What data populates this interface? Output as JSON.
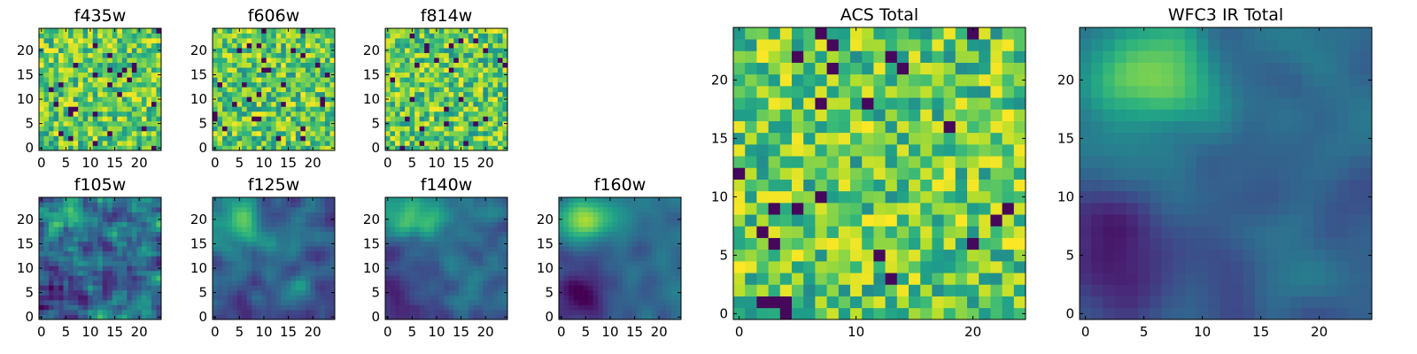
{
  "figure": {
    "colormap": "viridis",
    "grid": false,
    "legend": "none",
    "colormap_stops": [
      "#440154",
      "#3b528b",
      "#21918c",
      "#5ec962",
      "#fde725"
    ]
  },
  "chart_data": [
    {
      "type": "heatmap",
      "title": "f435w",
      "xlabel": "",
      "ylabel": "",
      "xlim": [
        -0.5,
        24.5
      ],
      "ylim": [
        -0.5,
        24.5
      ],
      "xticks": [
        "0",
        "5",
        "10",
        "15",
        "20"
      ],
      "yticks": [
        "0",
        "5",
        "10",
        "15",
        "20"
      ],
      "grid_shape": [
        25,
        25
      ],
      "value_range": [
        0,
        1
      ],
      "pattern": "noise",
      "seed": 11
    },
    {
      "type": "heatmap",
      "title": "f606w",
      "xlabel": "",
      "ylabel": "",
      "xlim": [
        -0.5,
        24.5
      ],
      "ylim": [
        -0.5,
        24.5
      ],
      "xticks": [
        "0",
        "5",
        "10",
        "15",
        "20"
      ],
      "yticks": [
        "0",
        "5",
        "10",
        "15",
        "20"
      ],
      "grid_shape": [
        25,
        25
      ],
      "value_range": [
        0,
        1
      ],
      "pattern": "noise",
      "seed": 23
    },
    {
      "type": "heatmap",
      "title": "f814w",
      "xlabel": "",
      "ylabel": "",
      "xlim": [
        -0.5,
        24.5
      ],
      "ylim": [
        -0.5,
        24.5
      ],
      "xticks": [
        "0",
        "5",
        "10",
        "15",
        "20"
      ],
      "yticks": [
        "0",
        "5",
        "10",
        "15",
        "20"
      ],
      "grid_shape": [
        25,
        25
      ],
      "value_range": [
        0,
        1
      ],
      "pattern": "noise",
      "seed": 37
    },
    {
      "type": "heatmap",
      "title": "f105w",
      "xlabel": "",
      "ylabel": "",
      "xlim": [
        -0.5,
        24.5
      ],
      "ylim": [
        -0.5,
        24.5
      ],
      "xticks": [
        "0",
        "5",
        "10",
        "15",
        "20"
      ],
      "yticks": [
        "0",
        "5",
        "10",
        "15",
        "20"
      ],
      "grid_shape": [
        25,
        25
      ],
      "value_range": [
        0,
        1
      ],
      "pattern": "ir",
      "smooth": 0.35,
      "seed": 41
    },
    {
      "type": "heatmap",
      "title": "f125w",
      "xlabel": "",
      "ylabel": "",
      "xlim": [
        -0.5,
        24.5
      ],
      "ylim": [
        -0.5,
        24.5
      ],
      "xticks": [
        "0",
        "5",
        "10",
        "15",
        "20"
      ],
      "yticks": [
        "0",
        "5",
        "10",
        "15",
        "20"
      ],
      "grid_shape": [
        25,
        25
      ],
      "value_range": [
        0,
        1
      ],
      "pattern": "ir",
      "smooth": 0.55,
      "seed": 53
    },
    {
      "type": "heatmap",
      "title": "f140w",
      "xlabel": "",
      "ylabel": "",
      "xlim": [
        -0.5,
        24.5
      ],
      "ylim": [
        -0.5,
        24.5
      ],
      "xticks": [
        "0",
        "5",
        "10",
        "15",
        "20"
      ],
      "yticks": [
        "0",
        "5",
        "10",
        "15",
        "20"
      ],
      "grid_shape": [
        25,
        25
      ],
      "value_range": [
        0,
        1
      ],
      "pattern": "ir",
      "smooth": 0.75,
      "seed": 67
    },
    {
      "type": "heatmap",
      "title": "f160w",
      "xlabel": "",
      "ylabel": "",
      "xlim": [
        -0.5,
        24.5
      ],
      "ylim": [
        -0.5,
        24.5
      ],
      "xticks": [
        "0",
        "5",
        "10",
        "15",
        "20"
      ],
      "yticks": [
        "0",
        "5",
        "10",
        "15",
        "20"
      ],
      "grid_shape": [
        25,
        25
      ],
      "value_range": [
        0,
        1
      ],
      "pattern": "ir",
      "smooth": 0.9,
      "seed": 79
    },
    {
      "type": "heatmap",
      "title": "ACS Total",
      "xlabel": "",
      "ylabel": "",
      "xlim": [
        -0.5,
        24.5
      ],
      "ylim": [
        -0.5,
        24.5
      ],
      "xticks": [
        "0",
        "10",
        "20"
      ],
      "yticks": [
        "0",
        "5",
        "10",
        "15",
        "20"
      ],
      "grid_shape": [
        25,
        25
      ],
      "value_range": [
        0,
        1
      ],
      "pattern": "noise",
      "seed": 97
    },
    {
      "type": "heatmap",
      "title": "WFC3 IR Total",
      "xlabel": "",
      "ylabel": "",
      "xlim": [
        -0.5,
        24.5
      ],
      "ylim": [
        -0.5,
        24.5
      ],
      "xticks": [
        "0",
        "5",
        "10",
        "15",
        "20"
      ],
      "yticks": [
        "0",
        "5",
        "10",
        "15",
        "20"
      ],
      "grid_shape": [
        25,
        25
      ],
      "value_range": [
        0,
        1
      ],
      "pattern": "ir",
      "smooth": 0.85,
      "seed": 101
    }
  ]
}
